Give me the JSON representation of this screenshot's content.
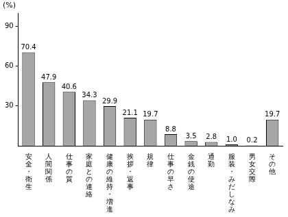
{
  "chart_data": {
    "type": "bar",
    "y_label": "(%)",
    "categories": [
      "安全・衛生",
      "人間関係",
      "仕事の質",
      "家庭との連絡",
      "健康の維持・増進",
      "挨拶・返事",
      "規律",
      "仕事の早さ",
      "金銭の使途",
      "通勤",
      "服装・みだしなみ",
      "男女交際",
      "その他"
    ],
    "values": [
      70.4,
      47.9,
      40.6,
      34.3,
      29.9,
      21.1,
      19.7,
      8.8,
      3.5,
      2.8,
      1.0,
      0.2,
      19.7
    ],
    "value_labels": [
      "70.4",
      "47.9",
      "40.6",
      "34.3",
      "29.9",
      "21.1",
      "19.7",
      "8.8",
      "3.5",
      "2.8",
      "1.0",
      "0.2",
      "19.7"
    ],
    "color": "#a6a6a6",
    "ylim": [
      0,
      100
    ],
    "yticks": [
      30,
      60,
      90
    ],
    "grid": false,
    "data_labels": true
  }
}
